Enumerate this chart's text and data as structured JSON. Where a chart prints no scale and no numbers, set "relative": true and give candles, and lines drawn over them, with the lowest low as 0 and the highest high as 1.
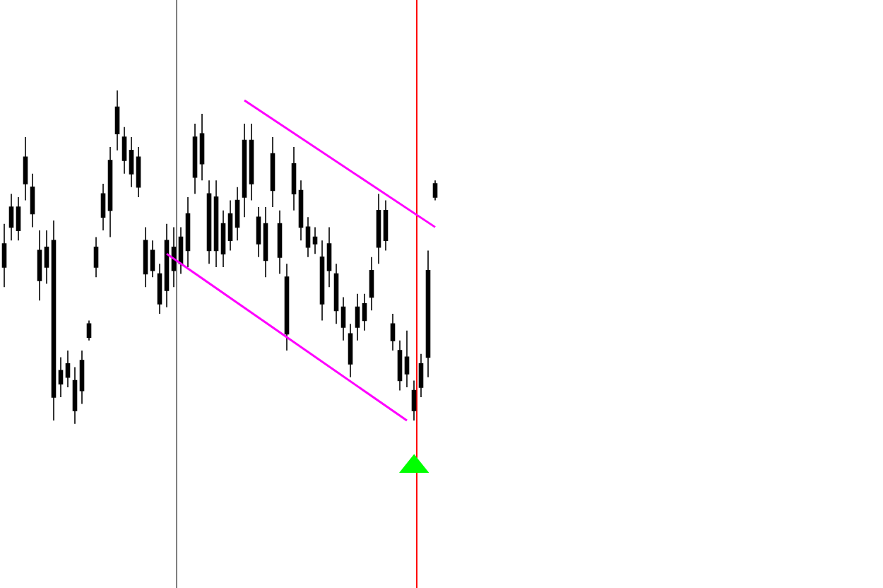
{
  "chart_data": {
    "type": "candlestick",
    "relative": true,
    "color": "#000000",
    "categories": [
      null,
      null,
      null,
      null,
      null,
      null,
      null,
      null,
      null,
      null,
      null,
      null,
      null,
      null,
      null,
      null,
      null,
      null,
      null,
      null,
      null,
      null,
      null,
      null,
      null,
      null,
      null,
      null,
      null,
      null,
      null,
      null,
      null,
      null,
      null,
      null,
      null,
      null,
      null,
      null,
      null,
      null,
      null,
      null,
      null,
      null,
      null,
      null,
      null,
      null,
      null,
      null,
      null,
      null,
      null,
      null,
      null,
      null,
      null,
      null,
      null,
      null
    ],
    "ohlc": [
      [
        0.47,
        0.6,
        0.41,
        0.54
      ],
      [
        0.59,
        0.69,
        0.55,
        0.65
      ],
      [
        0.58,
        0.68,
        0.55,
        0.65
      ],
      [
        0.8,
        0.86,
        0.67,
        0.72
      ],
      [
        0.71,
        0.75,
        0.59,
        0.63
      ],
      [
        0.52,
        0.58,
        0.37,
        0.43
      ],
      [
        0.47,
        0.58,
        0.42,
        0.53
      ],
      [
        0.55,
        0.61,
        0.01,
        0.08
      ],
      [
        0.12,
        0.2,
        0.08,
        0.16
      ],
      [
        0.18,
        0.22,
        0.11,
        0.14
      ],
      [
        0.04,
        0.17,
        0.0,
        0.13
      ],
      [
        0.1,
        0.22,
        0.06,
        0.19
      ],
      [
        0.26,
        0.31,
        0.25,
        0.3
      ],
      [
        0.47,
        0.56,
        0.44,
        0.53
      ],
      [
        0.62,
        0.72,
        0.58,
        0.69
      ],
      [
        0.64,
        0.83,
        0.56,
        0.79
      ],
      [
        0.87,
        1.0,
        0.82,
        0.95
      ],
      [
        0.86,
        0.89,
        0.75,
        0.79
      ],
      [
        0.75,
        0.86,
        0.71,
        0.82
      ],
      [
        0.8,
        0.83,
        0.68,
        0.71
      ],
      [
        0.55,
        0.59,
        0.41,
        0.45
      ],
      [
        0.46,
        0.55,
        0.44,
        0.52
      ],
      [
        0.45,
        0.48,
        0.33,
        0.36
      ],
      [
        0.4,
        0.6,
        0.35,
        0.55
      ],
      [
        0.53,
        0.59,
        0.41,
        0.46
      ],
      [
        0.48,
        0.59,
        0.45,
        0.56
      ],
      [
        0.52,
        0.68,
        0.47,
        0.63
      ],
      [
        0.74,
        0.9,
        0.69,
        0.86
      ],
      [
        0.87,
        0.93,
        0.73,
        0.78
      ],
      [
        0.69,
        0.73,
        0.48,
        0.52
      ],
      [
        0.52,
        0.73,
        0.47,
        0.68
      ],
      [
        0.6,
        0.64,
        0.47,
        0.51
      ],
      [
        0.55,
        0.67,
        0.52,
        0.63
      ],
      [
        0.59,
        0.71,
        0.55,
        0.67
      ],
      [
        0.68,
        0.9,
        0.62,
        0.85
      ],
      [
        0.85,
        0.9,
        0.67,
        0.72
      ],
      [
        0.62,
        0.65,
        0.5,
        0.54
      ],
      [
        0.49,
        0.65,
        0.44,
        0.6
      ],
      [
        0.7,
        0.86,
        0.65,
        0.81
      ],
      [
        0.6,
        0.64,
        0.45,
        0.5
      ],
      [
        0.44,
        0.48,
        0.22,
        0.27
      ],
      [
        0.69,
        0.83,
        0.64,
        0.78
      ],
      [
        0.7,
        0.73,
        0.55,
        0.59
      ],
      [
        0.59,
        0.62,
        0.5,
        0.53
      ],
      [
        0.54,
        0.59,
        0.51,
        0.56
      ],
      [
        0.5,
        0.55,
        0.31,
        0.36
      ],
      [
        0.46,
        0.59,
        0.41,
        0.54
      ],
      [
        0.45,
        0.48,
        0.3,
        0.34
      ],
      [
        0.35,
        0.38,
        0.25,
        0.29
      ],
      [
        0.27,
        0.3,
        0.14,
        0.18
      ],
      [
        0.29,
        0.39,
        0.25,
        0.35
      ],
      [
        0.31,
        0.39,
        0.28,
        0.36
      ],
      [
        0.38,
        0.5,
        0.34,
        0.46
      ],
      [
        0.53,
        0.69,
        0.48,
        0.64
      ],
      [
        0.64,
        0.67,
        0.52,
        0.55
      ],
      [
        0.3,
        0.33,
        0.22,
        0.25
      ],
      [
        0.22,
        0.25,
        0.1,
        0.13
      ],
      [
        0.15,
        0.28,
        0.11,
        0.2
      ],
      [
        0.1,
        0.13,
        0.01,
        0.04
      ],
      [
        0.11,
        0.21,
        0.08,
        0.18
      ],
      [
        0.2,
        0.52,
        0.14,
        0.46
      ],
      [
        0.68,
        0.73,
        0.67,
        0.72
      ]
    ],
    "series": [
      {
        "type": "line",
        "color": "#ff00ff",
        "values": [
          null,
          null,
          null,
          null,
          null,
          null,
          null,
          null,
          null,
          null,
          null,
          null,
          null,
          null,
          null,
          null,
          null,
          null,
          null,
          null,
          null,
          null,
          null,
          null,
          null,
          null,
          null,
          null,
          null,
          null,
          null,
          null,
          null,
          null,
          0.97,
          null,
          null,
          null,
          null,
          null,
          null,
          null,
          null,
          null,
          null,
          null,
          null,
          null,
          null,
          null,
          null,
          null,
          null,
          null,
          null,
          null,
          null,
          null,
          null,
          null,
          null,
          0.59
        ]
      },
      {
        "type": "line",
        "color": "#ff00ff",
        "values": [
          null,
          null,
          null,
          null,
          null,
          null,
          null,
          null,
          null,
          null,
          null,
          null,
          null,
          null,
          null,
          null,
          null,
          null,
          null,
          null,
          null,
          null,
          null,
          0.51,
          null,
          null,
          null,
          null,
          null,
          null,
          null,
          null,
          null,
          null,
          null,
          null,
          null,
          null,
          null,
          null,
          null,
          null,
          null,
          null,
          null,
          null,
          null,
          null,
          null,
          null,
          null,
          null,
          null,
          null,
          null,
          null,
          null,
          0.01,
          null,
          null,
          null,
          null
        ]
      }
    ]
  }
}
